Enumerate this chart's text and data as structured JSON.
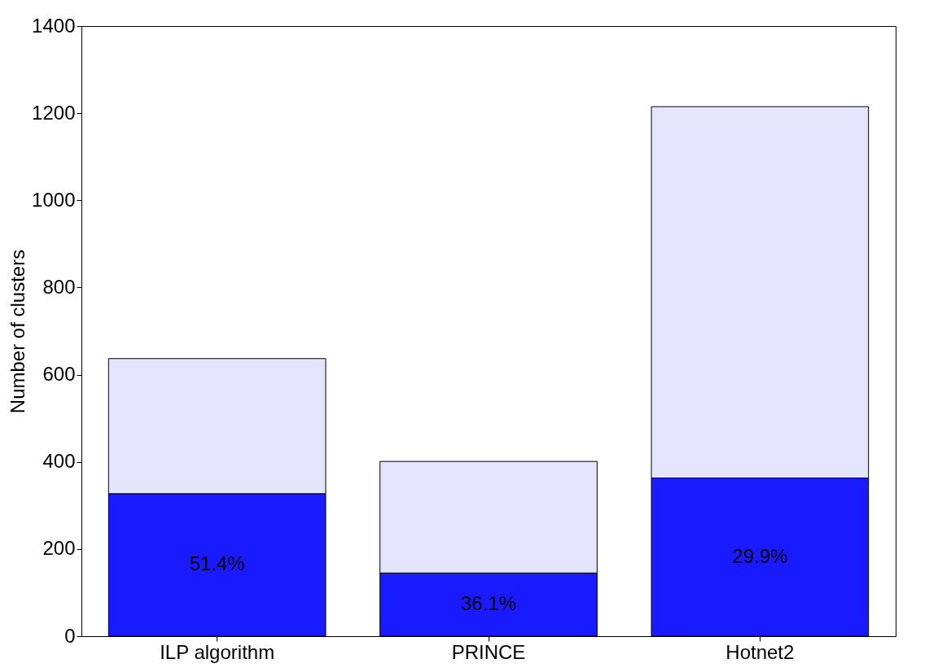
{
  "chart_data": {
    "type": "bar",
    "stacked": true,
    "ylabel": "Number of clusters",
    "categories": [
      "ILP algorithm",
      "PRINCE",
      "Hotnet2"
    ],
    "series": [
      {
        "color": "#1a1aff",
        "values": [
          327,
          145,
          363
        ]
      },
      {
        "color": "#e4e4fc",
        "values": [
          310,
          256,
          852
        ]
      }
    ],
    "annotations": [
      "51.4%",
      "36.1%",
      "29.9%"
    ],
    "ylim": [
      0,
      1400
    ],
    "yticks": [
      0,
      200,
      400,
      600,
      800,
      1000,
      1200,
      1400
    ],
    "grid": false,
    "legend": false
  }
}
